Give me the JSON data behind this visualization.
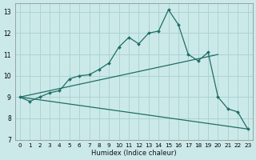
{
  "xlabel": "Humidex (Indice chaleur)",
  "xlim": [
    -0.5,
    23.5
  ],
  "ylim": [
    7,
    13.4
  ],
  "yticks": [
    7,
    8,
    9,
    10,
    11,
    12,
    13
  ],
  "xticks": [
    0,
    1,
    2,
    3,
    4,
    5,
    6,
    7,
    8,
    9,
    10,
    11,
    12,
    13,
    14,
    15,
    16,
    17,
    18,
    19,
    20,
    21,
    22,
    23
  ],
  "background_color": "#cce9e9",
  "grid_color": "#aad4d4",
  "line_color": "#1e6e66",
  "line1_x": [
    0,
    23
  ],
  "line1_y": [
    9.0,
    7.5
  ],
  "line2_x": [
    0,
    1,
    2,
    3,
    4,
    5,
    6,
    7,
    8,
    9,
    10,
    11,
    12,
    13,
    14,
    15,
    16,
    17,
    18,
    19,
    20,
    21,
    22,
    23
  ],
  "line2_y": [
    9.0,
    8.8,
    9.0,
    9.2,
    9.3,
    9.85,
    10.0,
    10.05,
    10.3,
    10.6,
    11.35,
    11.8,
    11.5,
    12.0,
    12.1,
    13.1,
    12.4,
    11.0,
    10.7,
    11.1,
    9.0,
    8.45,
    8.3,
    7.5
  ],
  "line3_x": [
    0,
    20
  ],
  "line3_y": [
    9.0,
    11.0
  ]
}
